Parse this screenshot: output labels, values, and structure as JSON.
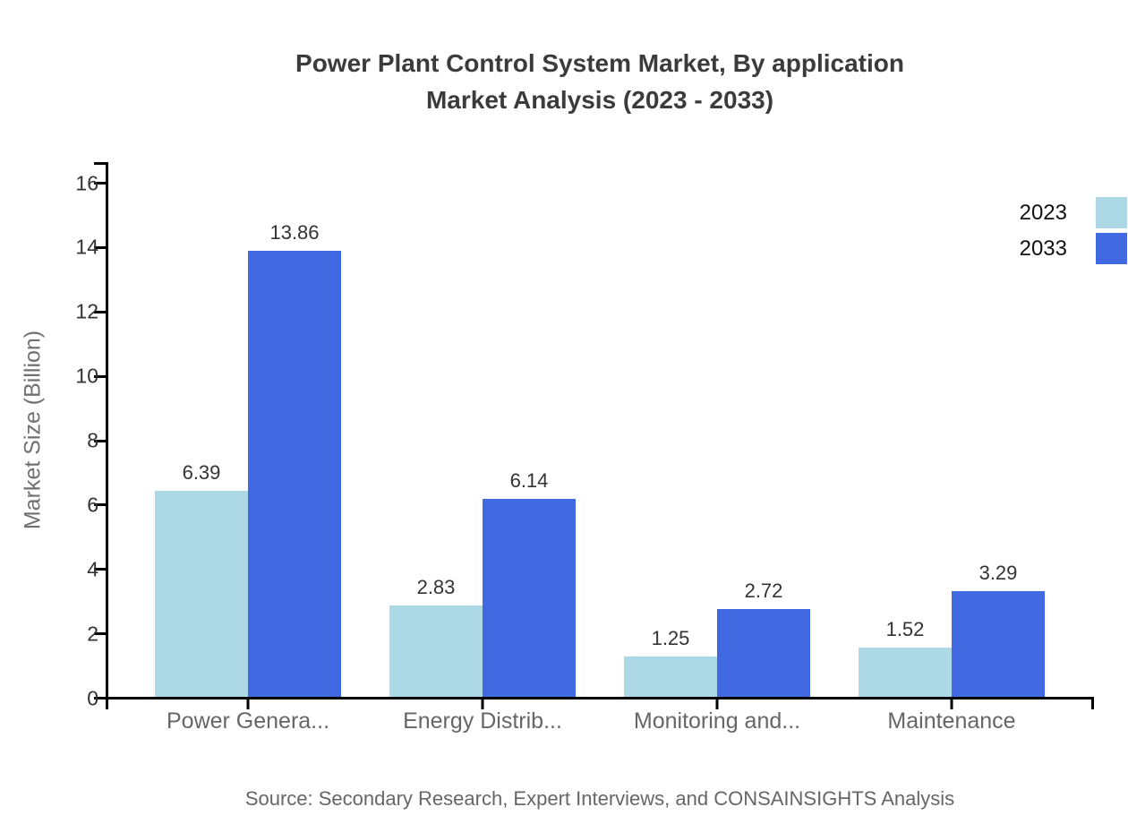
{
  "title": {
    "line1": "Power Plant Control System Market, By application",
    "line2": "Market Analysis (2023 - 2033)"
  },
  "y_axis_title": "Market Size (Billion)",
  "source": "Source: Secondary Research, Expert Interviews, and CONSAINSIGHTS Analysis",
  "legend": {
    "items": [
      {
        "label": "2023",
        "color": "#add8e6"
      },
      {
        "label": "2033",
        "color": "#4169e1"
      }
    ]
  },
  "colors": {
    "series_2023": "#add8e6",
    "series_2033": "#4169e1",
    "axis": "#000000",
    "title_text": "#3b3b3b",
    "tick_label_text": "#333333",
    "category_text": "#666666",
    "value_label_text": "#333333",
    "source_text": "#666666",
    "background": "#ffffff"
  },
  "chart_data": {
    "type": "bar",
    "title": "Power Plant Control System Market, By application Market Analysis (2023 - 2033)",
    "categories": [
      "Power Genera...",
      "Energy Distrib...",
      "Monitoring and...",
      "Maintenance"
    ],
    "series": [
      {
        "name": "2023",
        "color": "#add8e6",
        "values": [
          6.39,
          2.83,
          1.25,
          1.52
        ]
      },
      {
        "name": "2033",
        "color": "#4169e1",
        "values": [
          13.86,
          6.14,
          2.72,
          3.29
        ]
      }
    ],
    "xlabel": "",
    "ylabel": "Market Size (Billion)",
    "ylim": [
      0,
      16
    ],
    "yticks": [
      0,
      2,
      4,
      6,
      8,
      10,
      12,
      14,
      16
    ],
    "grid": false,
    "legend_position": "top-right",
    "value_labels_shown": true
  }
}
